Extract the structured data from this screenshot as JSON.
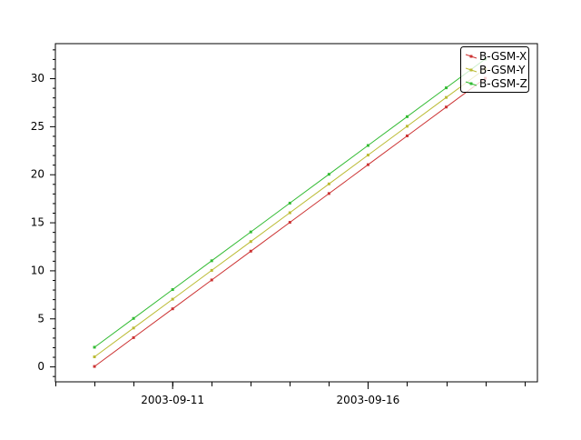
{
  "chart_data": {
    "type": "line",
    "title": "",
    "xlabel": "",
    "ylabel": "",
    "x": [
      "2003-09-09",
      "2003-09-10",
      "2003-09-11",
      "2003-09-12",
      "2003-09-13",
      "2003-09-14",
      "2003-09-15",
      "2003-09-16",
      "2003-09-17",
      "2003-09-18",
      "2003-09-19"
    ],
    "series": [
      {
        "name": "B-GSM-X",
        "color": "#cc3333",
        "values": [
          0,
          3,
          6,
          9,
          12,
          15,
          18,
          21,
          24,
          27,
          30
        ]
      },
      {
        "name": "B-GSM-Y",
        "color": "#bbbb33",
        "values": [
          1,
          4,
          7,
          10,
          13,
          16,
          19,
          22,
          25,
          28,
          31
        ]
      },
      {
        "name": "B-GSM-Z",
        "color": "#33bb33",
        "values": [
          2,
          5,
          8,
          11,
          14,
          17,
          20,
          23,
          26,
          29,
          32
        ]
      }
    ],
    "xlim": [
      "2003-09-08T00:00",
      "2003-09-20T08:00"
    ],
    "ylim": [
      -1.6,
      33.6
    ],
    "x_tick_labels": [
      "2003-09-11",
      "2003-09-16"
    ],
    "y_ticks": [
      0,
      5,
      10,
      15,
      20,
      25,
      30
    ],
    "grid": false,
    "legend_position": "top-right"
  }
}
